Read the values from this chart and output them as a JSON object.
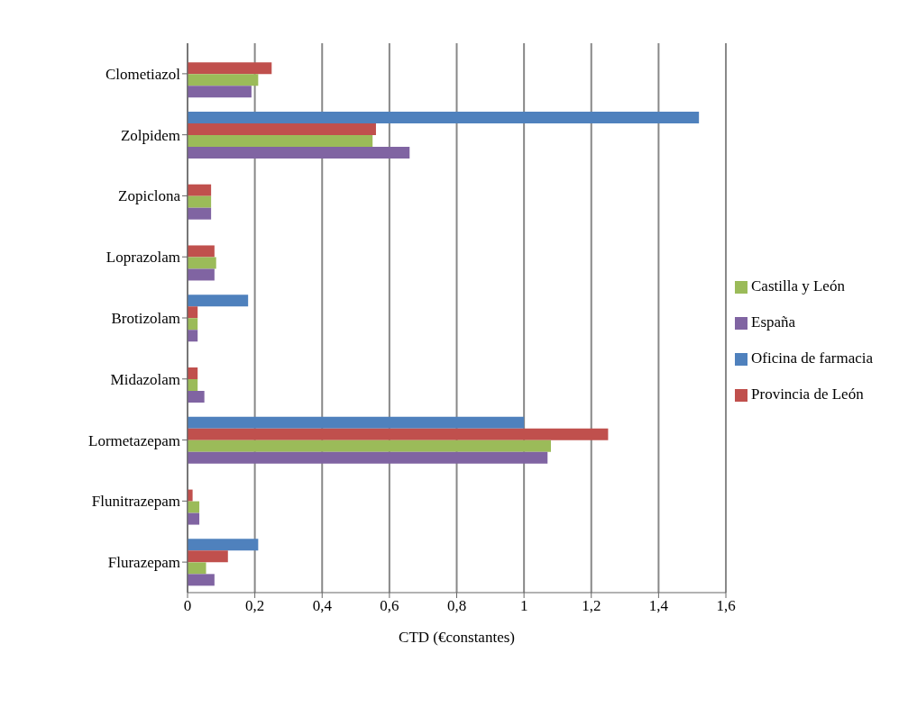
{
  "chart_data": {
    "type": "bar",
    "orientation": "horizontal",
    "xlabel": "CTD (€constantes)",
    "categories": [
      "Clometiazol",
      "Zolpidem",
      "Zopiclona",
      "Loprazolam",
      "Brotizolam",
      "Midazolam",
      "Lormetazepam",
      "Flunitrazepam",
      "Flurazepam"
    ],
    "series": [
      {
        "name": "Oficina de farmacia",
        "color": "#4f81bd",
        "values": [
          null,
          1.52,
          null,
          null,
          0.18,
          null,
          1.0,
          null,
          0.21
        ]
      },
      {
        "name": "Provincia de León",
        "color": "#c0504d",
        "values": [
          0.25,
          0.56,
          0.07,
          0.08,
          0.03,
          0.03,
          1.25,
          0.015,
          0.12
        ]
      },
      {
        "name": "Castilla y León",
        "color": "#9bbb59",
        "values": [
          0.21,
          0.55,
          0.07,
          0.085,
          0.03,
          0.03,
          1.08,
          0.035,
          0.055
        ]
      },
      {
        "name": "España",
        "color": "#8064a2",
        "values": [
          0.19,
          0.66,
          0.07,
          0.08,
          0.03,
          0.05,
          1.07,
          0.035,
          0.08
        ]
      }
    ],
    "xlim": [
      0,
      1.6
    ],
    "xticks": [
      {
        "value": 0,
        "label": "0"
      },
      {
        "value": 0.2,
        "label": "0,2"
      },
      {
        "value": 0.4,
        "label": "0,4"
      },
      {
        "value": 0.6,
        "label": "0,6"
      },
      {
        "value": 0.8,
        "label": "0,8"
      },
      {
        "value": 1,
        "label": "1"
      },
      {
        "value": 1.2,
        "label": "1,2"
      },
      {
        "value": 1.4,
        "label": "1,4"
      },
      {
        "value": 1.6,
        "label": "1,6"
      }
    ],
    "grid": "x",
    "legend": "right"
  }
}
